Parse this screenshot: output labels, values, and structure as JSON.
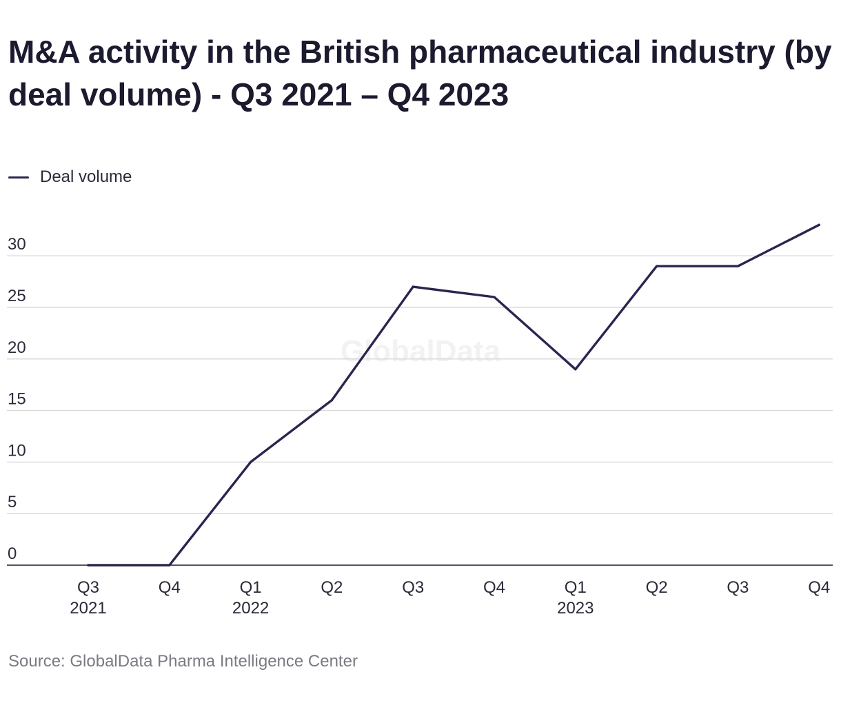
{
  "title": "M&A activity in the British pharmaceutical industry (by deal volume) - Q3 2021 – Q4 2023",
  "source": "Source: GlobalData Pharma Intelligence Center",
  "watermark": "GlobalData",
  "colors": {
    "series": "#2e2350",
    "grid": "#d9d9d9",
    "axis": "#1b1a2e",
    "text": "#2a2a3a",
    "watermark": "#f2f2f2"
  },
  "chart_data": {
    "type": "line",
    "title": "M&A activity in the British pharmaceutical industry (by deal volume) - Q3 2021 – Q4 2023",
    "xlabel": "",
    "ylabel": "",
    "categories": [
      {
        "line1": "Q3",
        "line2": "2021"
      },
      {
        "line1": "Q4",
        "line2": ""
      },
      {
        "line1": "Q1",
        "line2": "2022"
      },
      {
        "line1": "Q2",
        "line2": ""
      },
      {
        "line1": "Q3",
        "line2": ""
      },
      {
        "line1": "Q4",
        "line2": ""
      },
      {
        "line1": "Q1",
        "line2": "2023"
      },
      {
        "line1": "Q2",
        "line2": ""
      },
      {
        "line1": "Q3",
        "line2": ""
      },
      {
        "line1": "Q4",
        "line2": ""
      }
    ],
    "series": [
      {
        "name": "Deal volume",
        "values": [
          0,
          0,
          10,
          16,
          27,
          26,
          19,
          29,
          29,
          33
        ]
      }
    ],
    "yticks": [
      0,
      5,
      10,
      15,
      20,
      25,
      30
    ],
    "ylim": [
      0,
      33
    ],
    "grid": true,
    "legend_position": "top-left"
  }
}
